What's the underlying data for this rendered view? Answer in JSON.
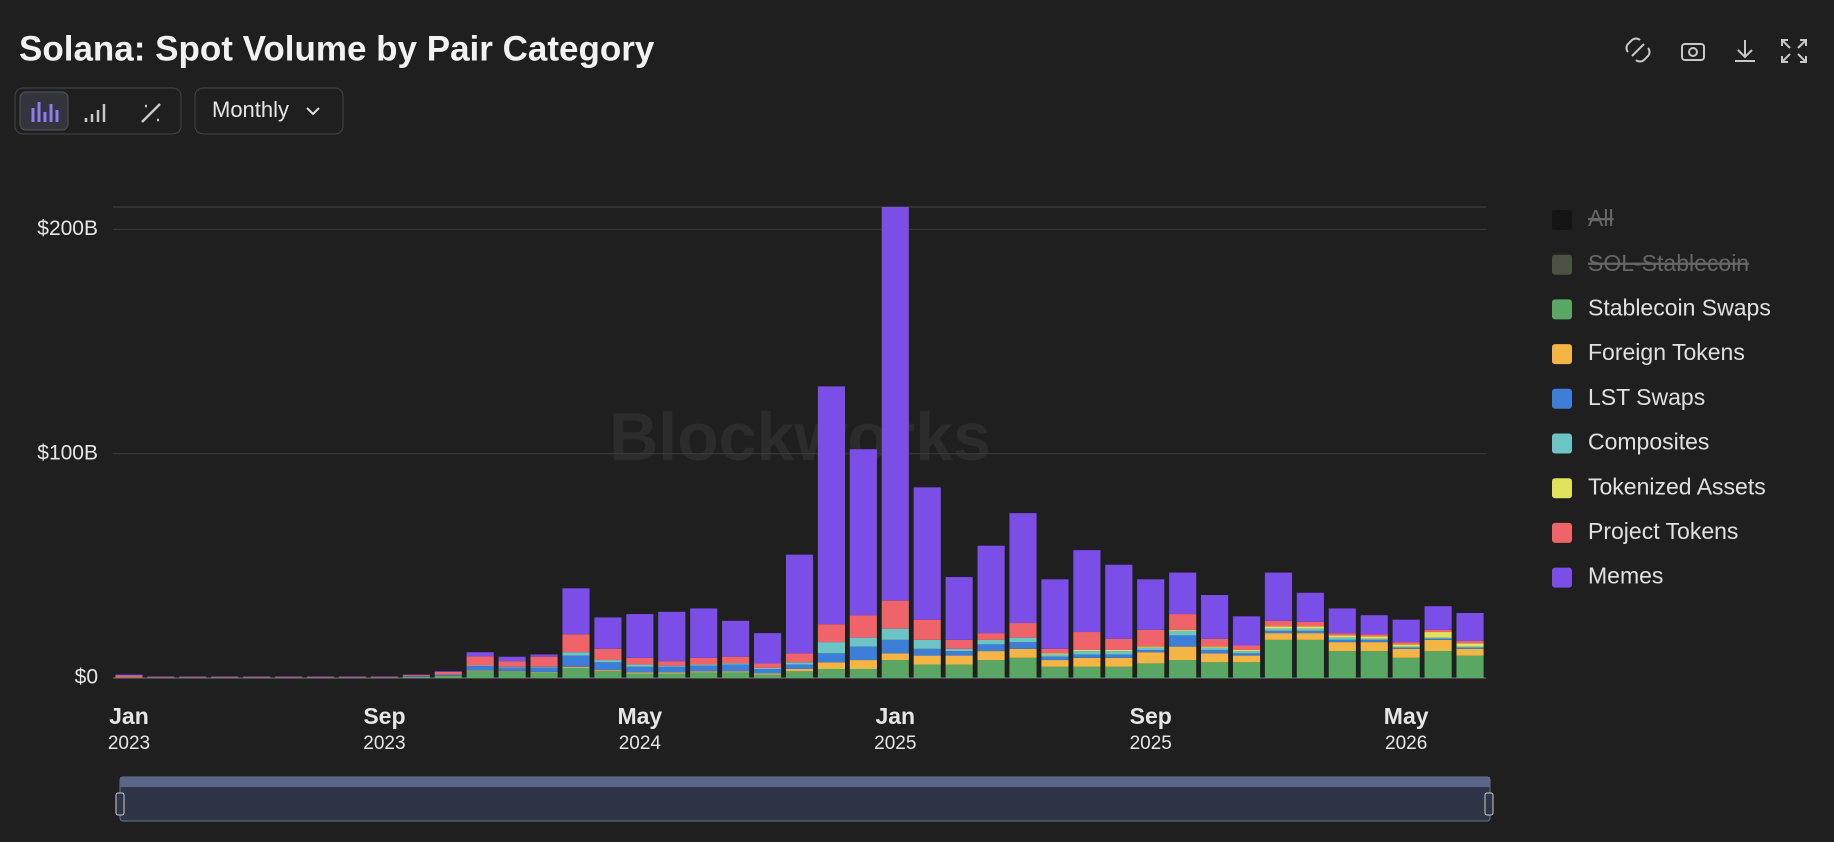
{
  "chart_data": {
    "type": "stacked_bar",
    "title": "Solana: Spot Volume by Pair Category",
    "controls": {
      "period": "Monthly"
    },
    "watermark": "Blockworks",
    "categories": [
      "2023-01",
      "2023-02",
      "2023-03",
      "2023-04",
      "2023-05",
      "2023-06",
      "2023-07",
      "2023-08",
      "2023-09",
      "2023-10",
      "2023-11",
      "2023-12",
      "2024-01",
      "2024-02",
      "2024-03",
      "2024-04",
      "2024-05",
      "2024-06",
      "2024-07",
      "2024-08",
      "2024-09",
      "2024-10",
      "2024-11",
      "2024-12",
      "2025-01",
      "2025-02",
      "2025-03",
      "2025-04",
      "2025-05",
      "2025-06",
      "2025-07",
      "2025-08",
      "2025-09",
      "2025-10",
      "2025-11",
      "2025-12",
      "2026-01",
      "2026-02",
      "2026-03",
      "2026-04",
      "2026-05",
      "2026-06",
      "2026-07"
    ],
    "xticks": [
      {
        "value": "2023-01",
        "label": "Jan 2023"
      },
      {
        "value": "2023-09",
        "label": "Sep 2023"
      },
      {
        "value": "2024-05",
        "label": "May 2024"
      },
      {
        "value": "2025-01",
        "label": "Jan 2025"
      },
      {
        "value": "2025-09",
        "label": "Sep 2025"
      },
      {
        "value": "2026-05",
        "label": "May 2026"
      }
    ],
    "ylim": [
      0,
      210
    ],
    "yticks": [
      {
        "value": 0,
        "label": "$0"
      },
      {
        "value": 100,
        "label": "$100B"
      },
      {
        "value": 200,
        "label": "$200B"
      }
    ],
    "grid": true,
    "legend_disabled": [
      {
        "name": "All",
        "color": "#141414"
      },
      {
        "name": "SOL-Stablecoin",
        "color": "#4a5242"
      }
    ],
    "series": [
      {
        "name": "Stablecoin Swaps",
        "color": "#5aa764",
        "values": [
          0.2,
          0.1,
          0.1,
          0.1,
          0.1,
          0.1,
          0.1,
          0.1,
          0.1,
          0.5,
          1,
          3,
          3,
          2.5,
          4.5,
          3,
          2,
          2,
          2.5,
          2.5,
          1.5,
          3,
          4,
          4,
          8,
          6,
          6,
          8,
          9,
          5,
          5,
          5,
          6.5,
          8,
          7,
          7,
          17,
          17,
          12,
          12,
          9,
          12,
          10
        ]
      },
      {
        "name": "Foreign Tokens",
        "color": "#f5b544",
        "values": [
          0,
          0,
          0,
          0,
          0,
          0,
          0,
          0,
          0,
          0,
          0,
          0.3,
          0.2,
          0.2,
          0.5,
          0.5,
          0.5,
          0.5,
          0.5,
          0.5,
          0.5,
          1,
          3,
          4,
          3,
          4,
          4,
          4,
          4,
          3,
          4,
          4,
          5,
          6,
          4,
          3,
          3,
          3,
          4,
          4,
          4,
          5,
          3
        ]
      },
      {
        "name": "LST Swaps",
        "color": "#3d7ed8",
        "values": [
          0.1,
          0.2,
          0.2,
          0.2,
          0.2,
          0.2,
          0.2,
          0.2,
          0.2,
          0.3,
          0.5,
          2,
          1.5,
          2,
          5,
          3.5,
          2.5,
          2.5,
          2.5,
          3,
          2,
          2,
          4,
          6,
          6,
          3,
          2,
          3,
          3,
          1.5,
          1.5,
          1.5,
          1,
          5,
          1.5,
          1,
          1,
          1,
          1,
          1,
          0.5,
          0.5,
          0.5
        ]
      },
      {
        "name": "Composites",
        "color": "#6cc4c4",
        "values": [
          0,
          0,
          0,
          0,
          0,
          0,
          0,
          0,
          0,
          0,
          0,
          0.3,
          0.3,
          0.3,
          1.5,
          1,
          1,
          0.5,
          0.5,
          0.5,
          0.5,
          1,
          5,
          4,
          5,
          4,
          1,
          2,
          2,
          1,
          1.5,
          1.5,
          1,
          2,
          1,
          1,
          1,
          1,
          1,
          0.5,
          0.5,
          0.5,
          0.5
        ]
      },
      {
        "name": "Tokenized Assets",
        "color": "#dfe25a",
        "values": [
          0,
          0,
          0,
          0,
          0,
          0,
          0,
          0,
          0,
          0,
          0,
          0,
          0,
          0,
          0,
          0,
          0,
          0,
          0,
          0,
          0,
          0,
          0,
          0,
          0,
          0,
          0,
          0,
          0,
          0.5,
          0.5,
          0.5,
          0.5,
          0.5,
          0.5,
          0.5,
          1,
          1,
          1,
          1,
          1,
          2.5,
          1.5
        ]
      },
      {
        "name": "Project Tokens",
        "color": "#ee6468",
        "values": [
          0.8,
          0.3,
          0.3,
          0.3,
          0.3,
          0.3,
          0.3,
          0.3,
          0.3,
          0.5,
          1.2,
          4,
          2.5,
          4.5,
          8,
          5,
          3,
          2,
          3,
          3,
          2,
          4,
          8,
          10,
          12.5,
          9,
          4,
          3,
          6.5,
          2,
          8,
          5,
          7.5,
          7,
          3.5,
          2,
          2.5,
          2,
          1,
          1,
          1,
          1,
          1
        ]
      },
      {
        "name": "Memes",
        "color": "#7b4ee8",
        "values": [
          0.4,
          0.1,
          0.1,
          0.1,
          0.1,
          0.1,
          0.1,
          0.1,
          0.1,
          0.2,
          0.3,
          1.9,
          2,
          1,
          20.5,
          14,
          19.5,
          22,
          22,
          16,
          13.5,
          44,
          106,
          74,
          175.5,
          59,
          28,
          39,
          49,
          31,
          36.5,
          33,
          22.5,
          18.5,
          19.5,
          13,
          21.5,
          13,
          11,
          8.5,
          10,
          10.5,
          12.5
        ]
      }
    ]
  }
}
